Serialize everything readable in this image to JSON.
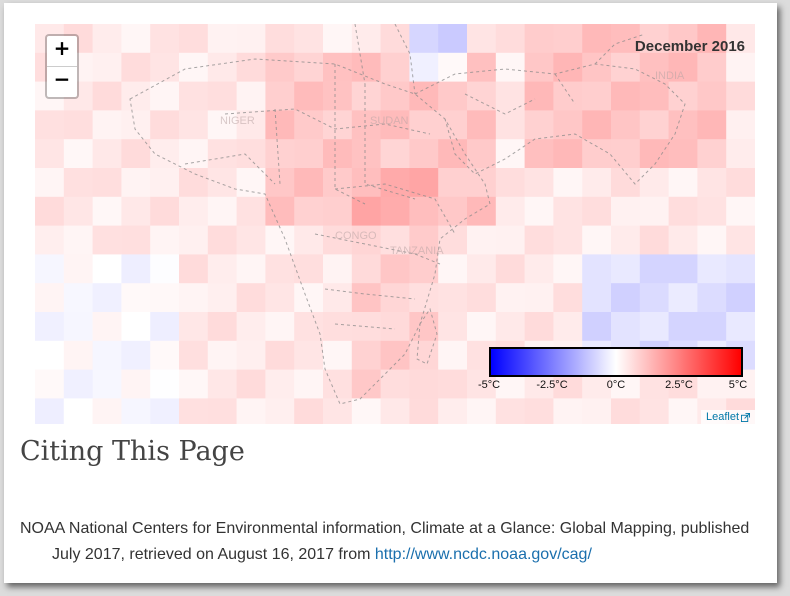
{
  "map": {
    "date_label": "December 2016",
    "zoom_in_label": "+",
    "zoom_out_label": "−",
    "attribution": "Leaflet",
    "legend": {
      "unit": "°C",
      "ticks": [
        "-5°C",
        "-2.5°C",
        "0°C",
        "2.5°C",
        "5°C"
      ],
      "colors": {
        "min": "#0000ff",
        "mid": "#ffffff",
        "max": "#ff0000"
      }
    },
    "country_labels": [
      "NIGER",
      "SUDAN",
      "TANZANIA",
      "INDIA",
      "CONGO"
    ]
  },
  "section": {
    "heading": "Citing This Page"
  },
  "citation": {
    "text": "NOAA National Centers for Environmental information, Climate at a Glance: Global Mapping, published July 2017, retrieved on August 16, 2017 from ",
    "link_text": "http://www.ncdc.noaa.gov/cag/"
  }
}
